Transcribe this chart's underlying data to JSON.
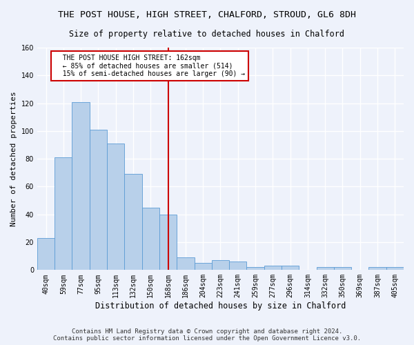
{
  "title": "THE POST HOUSE, HIGH STREET, CHALFORD, STROUD, GL6 8DH",
  "subtitle": "Size of property relative to detached houses in Chalford",
  "xlabel": "Distribution of detached houses by size in Chalford",
  "ylabel": "Number of detached properties",
  "footer_line1": "Contains HM Land Registry data © Crown copyright and database right 2024.",
  "footer_line2": "Contains public sector information licensed under the Open Government Licence v3.0.",
  "categories": [
    "40sqm",
    "59sqm",
    "77sqm",
    "95sqm",
    "113sqm",
    "132sqm",
    "150sqm",
    "168sqm",
    "186sqm",
    "204sqm",
    "223sqm",
    "241sqm",
    "259sqm",
    "277sqm",
    "296sqm",
    "314sqm",
    "332sqm",
    "350sqm",
    "369sqm",
    "387sqm",
    "405sqm"
  ],
  "values": [
    23,
    81,
    121,
    101,
    91,
    69,
    45,
    40,
    9,
    5,
    7,
    6,
    2,
    3,
    3,
    0,
    2,
    2,
    0,
    2,
    2
  ],
  "bar_color": "#b8d0ea",
  "bar_edge_color": "#5b9bd5",
  "marker_bin_index": 7,
  "annotation_text": "  THE POST HOUSE HIGH STREET: 162sqm\n  ← 85% of detached houses are smaller (514)\n  15% of semi-detached houses are larger (90) →",
  "annotation_box_color": "#ffffff",
  "annotation_box_edge_color": "#cc0000",
  "marker_line_color": "#cc0000",
  "ylim": [
    0,
    160
  ],
  "yticks": [
    0,
    20,
    40,
    60,
    80,
    100,
    120,
    140,
    160
  ],
  "bg_color": "#eef2fb",
  "grid_color": "#ffffff",
  "title_fontsize": 9.5,
  "subtitle_fontsize": 8.5,
  "axis_label_fontsize": 8,
  "tick_fontsize": 7,
  "footer_fontsize": 6.5
}
